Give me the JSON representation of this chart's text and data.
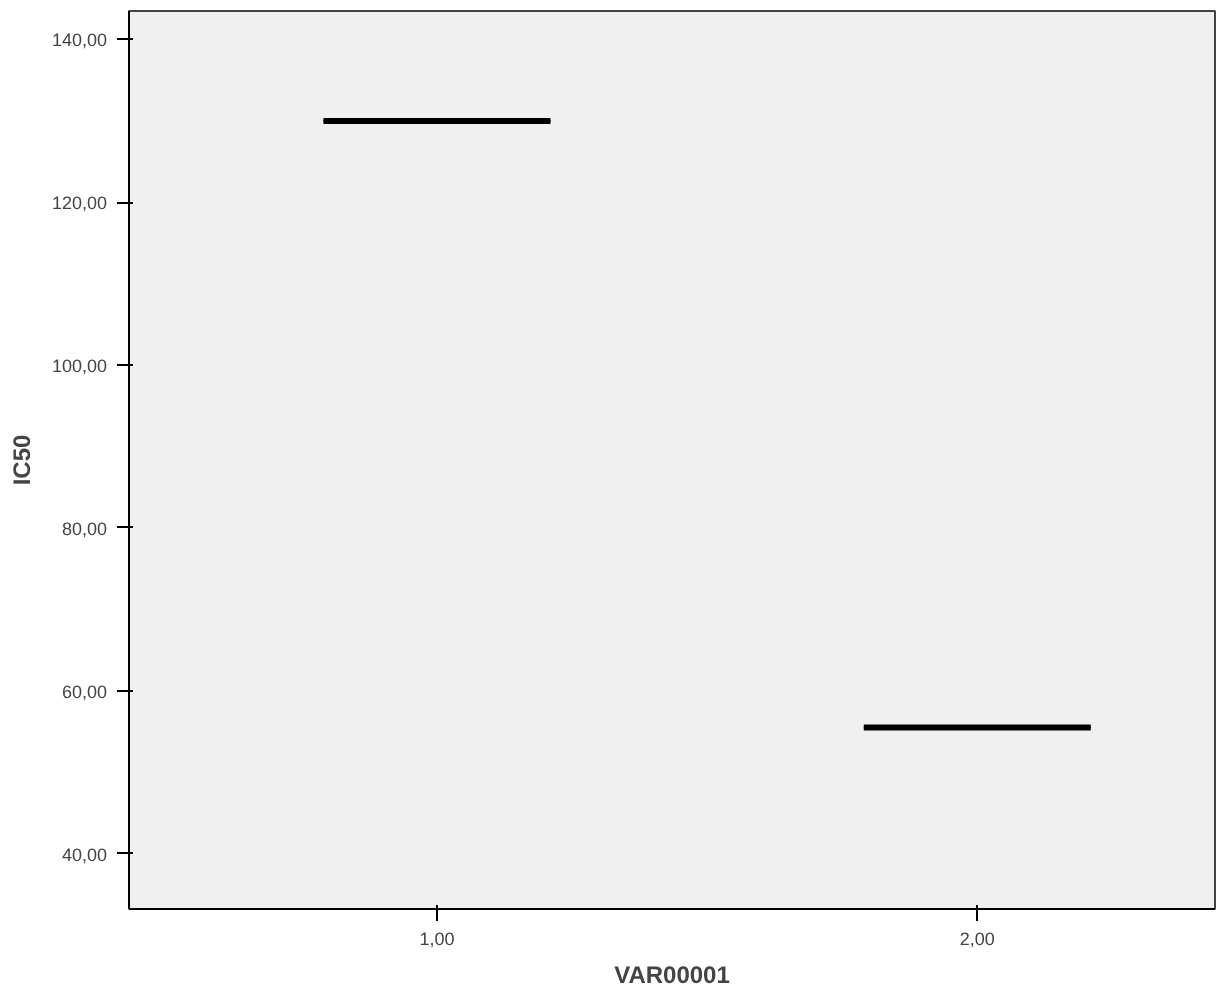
{
  "chart_data": {
    "type": "box",
    "xlabel": "VAR00001",
    "ylabel": "IC50",
    "categories": [
      "1,00",
      "2,00"
    ],
    "boxes": [
      {
        "low": 130,
        "q1": 130,
        "median": 130,
        "q3": 130,
        "high": 130
      },
      {
        "low": 55.5,
        "q1": 55.5,
        "median": 55.5,
        "q3": 55.5,
        "high": 55.5
      }
    ],
    "ylim": [
      33.2,
      143.5
    ],
    "yticks": [
      {
        "value": 40,
        "label": "40,00"
      },
      {
        "value": 60,
        "label": "60,00"
      },
      {
        "value": 80,
        "label": "80,00"
      },
      {
        "value": 100,
        "label": "100,00"
      },
      {
        "value": 120,
        "label": "120,00"
      },
      {
        "value": 140,
        "label": "140,00"
      }
    ],
    "grid": false
  }
}
